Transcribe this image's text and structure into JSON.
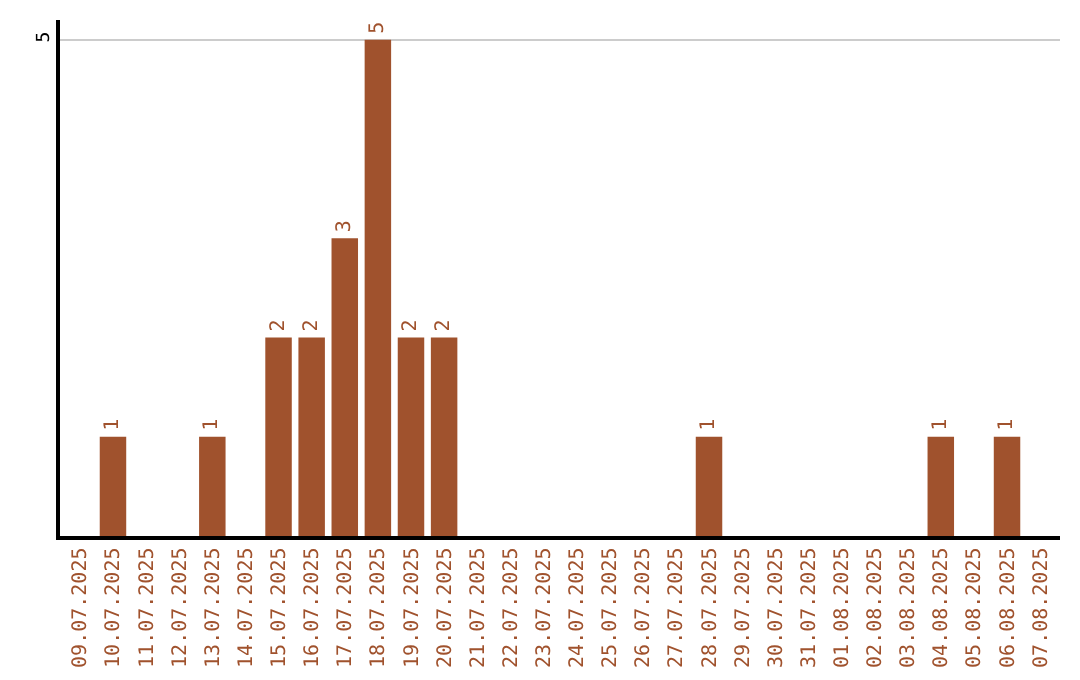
{
  "chart_data": {
    "type": "bar",
    "categories": [
      "09.07.2025",
      "10.07.2025",
      "11.07.2025",
      "12.07.2025",
      "13.07.2025",
      "14.07.2025",
      "15.07.2025",
      "16.07.2025",
      "17.07.2025",
      "18.07.2025",
      "19.07.2025",
      "20.07.2025",
      "21.07.2025",
      "22.07.2025",
      "23.07.2025",
      "24.07.2025",
      "25.07.2025",
      "26.07.2025",
      "27.07.2025",
      "28.07.2025",
      "29.07.2025",
      "30.07.2025",
      "31.07.2025",
      "01.08.2025",
      "02.08.2025",
      "03.08.2025",
      "04.08.2025",
      "05.08.2025",
      "06.08.2025",
      "07.08.2025"
    ],
    "values": [
      0,
      1,
      0,
      0,
      1,
      0,
      2,
      2,
      3,
      5,
      2,
      2,
      0,
      0,
      0,
      0,
      0,
      0,
      0,
      1,
      0,
      0,
      0,
      0,
      0,
      0,
      1,
      0,
      1,
      0
    ],
    "value_labels": [
      null,
      "1",
      null,
      null,
      "1",
      null,
      "2",
      "2",
      "3",
      "5",
      "2",
      "2",
      null,
      null,
      null,
      null,
      null,
      null,
      null,
      "1",
      null,
      null,
      null,
      null,
      null,
      null,
      "1",
      null,
      "1",
      null
    ],
    "color": "#a0522d",
    "ylim": [
      0,
      5.2
    ],
    "yticks": [
      5
    ],
    "grid": "y",
    "legend": false
  }
}
